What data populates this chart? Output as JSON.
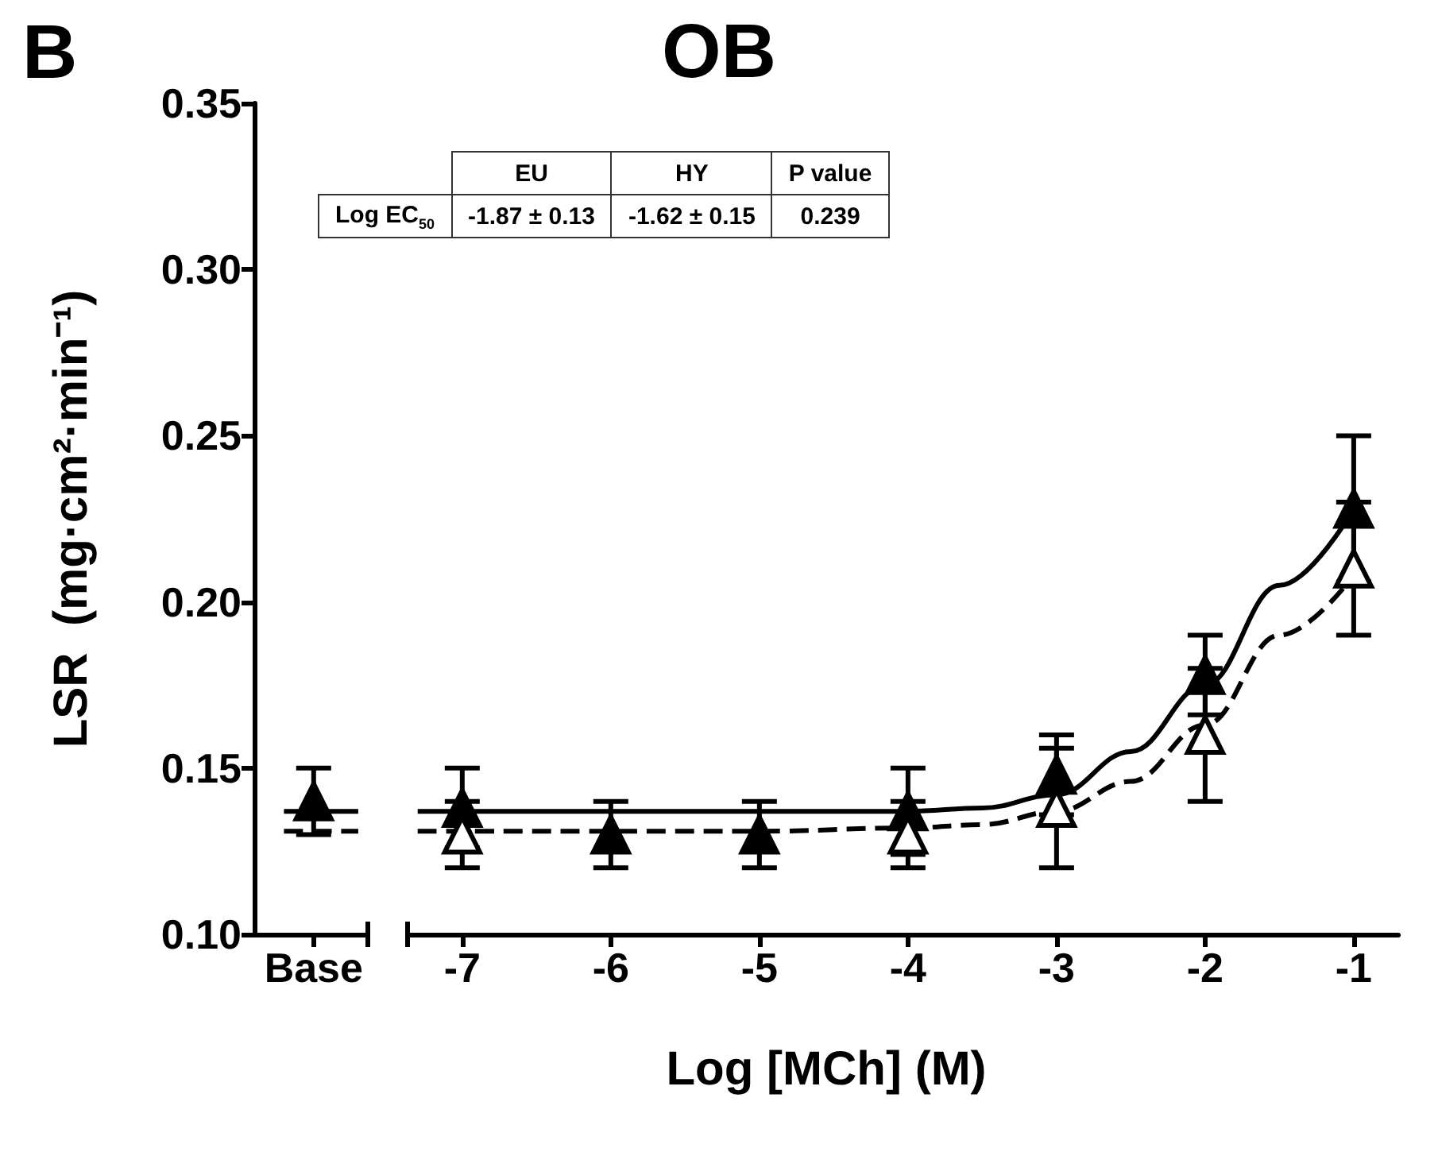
{
  "chart_data": {
    "type": "scatter",
    "title": "OB",
    "xlabel": "Log [MCh] (M)",
    "ylabel": "LSR  (mg·cm²·min⁻¹)",
    "annotations": [
      "B",
      "EU",
      "HY",
      "P value",
      "Log EC$_{50}$",
      "-1.87 ± 0.13",
      "-1.62 ± 0.15",
      "0.239"
    ],
    "x": [
      -8,
      -7,
      -6,
      -5,
      -4,
      -3,
      -2,
      -1
    ],
    "series": [
      {
        "color": "#000000",
        "values": [
          0.14,
          0.138,
          0.13,
          0.13,
          0.137,
          0.148,
          0.178,
          0.228
        ],
        "errors": [
          0.01,
          0.012,
          0.01,
          0.01,
          0.013,
          0.012,
          0.012,
          0.022
        ]
      },
      {
        "color": "#ffffff",
        "values": [
          null,
          0.13,
          null,
          null,
          0.13,
          0.138,
          0.16,
          0.21
        ],
        "errors": [
          null,
          0.01,
          null,
          null,
          0.01,
          0.018,
          0.02,
          0.02
        ]
      },
      {
        "type": "line",
        "color": "#000000",
        "line_style": "solid",
        "marker": "none",
        "x": [
          -8.2,
          -7.7,
          -7.5,
          -7.3,
          -7,
          -6,
          -5,
          -4,
          -3.5,
          -3,
          -2.5,
          -2,
          -1.5,
          -1
        ],
        "values": [
          0.137,
          0.137,
          null,
          0.137,
          0.137,
          0.137,
          0.137,
          0.137,
          0.138,
          0.142,
          0.155,
          0.175,
          0.205,
          0.228
        ]
      },
      {
        "type": "line",
        "color": "#000000",
        "line_style": "dashed",
        "marker": "none",
        "x": [
          -8.2,
          -7.7,
          -7.5,
          -7.3,
          -7,
          -6,
          -5,
          -4,
          -3.5,
          -3,
          -2.5,
          -2,
          -1.5,
          -1
        ],
        "values": [
          0.131,
          0.131,
          null,
          0.131,
          0.131,
          0.131,
          0.131,
          0.132,
          0.133,
          0.137,
          0.146,
          0.163,
          0.19,
          0.208
        ]
      }
    ],
    "marker": "triangle",
    "xlim": [
      -8.4,
      -0.7
    ],
    "xticks": [
      {
        "value": -8,
        "label": "Base"
      },
      -7,
      -6,
      -5,
      -4,
      -3,
      -2,
      -1
    ],
    "ylim": [
      0.1,
      0.35
    ],
    "yticks": [
      {
        "value": 0.1,
        "label": "0.10"
      },
      {
        "value": 0.15,
        "label": "0.15"
      },
      {
        "value": 0.2,
        "label": "0.20"
      },
      {
        "value": 0.25,
        "label": "0.25"
      },
      {
        "value": 0.3,
        "label": "0.30"
      },
      {
        "value": 0.35,
        "label": "0.35"
      }
    ],
    "grid": false
  }
}
